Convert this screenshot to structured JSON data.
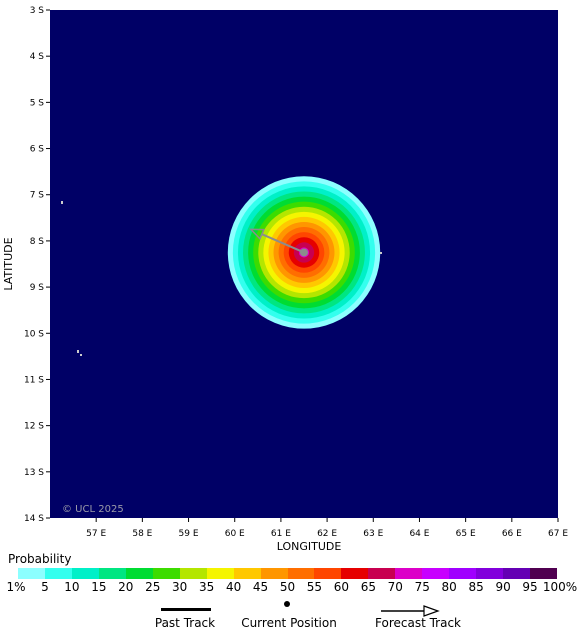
{
  "map": {
    "bounds": {
      "lon_min": 56,
      "lon_max": 67,
      "lat_min": 3,
      "lat_max": 14
    },
    "ocean_color": "#000066",
    "xlabel": "LONGITUDE",
    "ylabel": "LATITUDE",
    "copyright": "© UCL 2025",
    "lon_ticks": [
      "57 E",
      "58 E",
      "59 E",
      "60 E",
      "61 E",
      "62 E",
      "63 E",
      "64 E",
      "65 E",
      "66 E",
      "67 E"
    ],
    "lat_ticks": [
      "3 S",
      "4 S",
      "5 S",
      "6 S",
      "7 S",
      "8 S",
      "9 S",
      "10 S",
      "11 S",
      "12 S",
      "13 S",
      "14 S"
    ],
    "storm": {
      "center_lon": 61.5,
      "center_lat": 8.25,
      "outer_radius_deg": 1.65,
      "forecast_end": {
        "lon": 60.35,
        "lat": 7.75
      },
      "track_color": "#8c8c8c"
    }
  },
  "legend": {
    "title": "Probability",
    "labels": [
      "1%",
      "5",
      "10",
      "15",
      "20",
      "25",
      "30",
      "35",
      "40",
      "45",
      "50",
      "55",
      "60",
      "65",
      "70",
      "75",
      "80",
      "85",
      "90",
      "95",
      "100%"
    ],
    "colors": [
      "#8cffff",
      "#33ffee",
      "#00f0c8",
      "#00e682",
      "#00dc32",
      "#3cdc00",
      "#b4e600",
      "#f5f500",
      "#ffc800",
      "#ff9600",
      "#ff6e00",
      "#ff4600",
      "#e60000",
      "#c80050",
      "#dc00c8",
      "#c800ff",
      "#a000ff",
      "#8200dc",
      "#6400b4",
      "#500050"
    ]
  },
  "key": {
    "past_track": "Past Track",
    "current_position": "Current Position",
    "forecast_track": "Forecast Track"
  }
}
